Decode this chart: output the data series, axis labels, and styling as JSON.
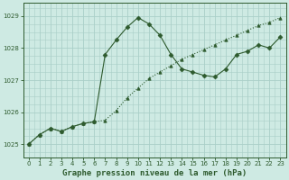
{
  "title": "Graphe pression niveau de la mer (hPa)",
  "background_color": "#ceeae3",
  "grid_color": "#aacfc8",
  "line_color": "#2d5a2d",
  "xlim": [
    -0.5,
    23.5
  ],
  "ylim": [
    1024.6,
    1029.4
  ],
  "yticks": [
    1025,
    1026,
    1027,
    1028,
    1029
  ],
  "xticks": [
    0,
    1,
    2,
    3,
    4,
    5,
    6,
    7,
    8,
    9,
    10,
    11,
    12,
    13,
    14,
    15,
    16,
    17,
    18,
    19,
    20,
    21,
    22,
    23
  ],
  "series_jagged_x": [
    0,
    1,
    2,
    3,
    4,
    5,
    6,
    7,
    8,
    9,
    10,
    11,
    12,
    13,
    14,
    15,
    16,
    17,
    18,
    19,
    20,
    21,
    22,
    23
  ],
  "series_jagged_y": [
    1025.0,
    1025.3,
    1025.5,
    1025.4,
    1025.55,
    1025.65,
    1025.7,
    1027.8,
    1028.25,
    1028.65,
    1028.95,
    1028.75,
    1028.4,
    1027.8,
    1027.35,
    1027.25,
    1027.15,
    1027.1,
    1027.35,
    1027.8,
    1027.9,
    1028.1,
    1028.0,
    1028.35
  ],
  "series_smooth_x": [
    0,
    1,
    2,
    3,
    4,
    5,
    6,
    7,
    8,
    9,
    10,
    11,
    12,
    13,
    14,
    15,
    16,
    17,
    18,
    19,
    20,
    21,
    22,
    23
  ],
  "series_smooth_y": [
    1025.0,
    1025.3,
    1025.5,
    1025.4,
    1025.55,
    1025.65,
    1025.7,
    1025.75,
    1026.05,
    1026.45,
    1026.75,
    1027.05,
    1027.25,
    1027.45,
    1027.65,
    1027.8,
    1027.95,
    1028.1,
    1028.25,
    1028.4,
    1028.55,
    1028.7,
    1028.8,
    1028.95
  ]
}
